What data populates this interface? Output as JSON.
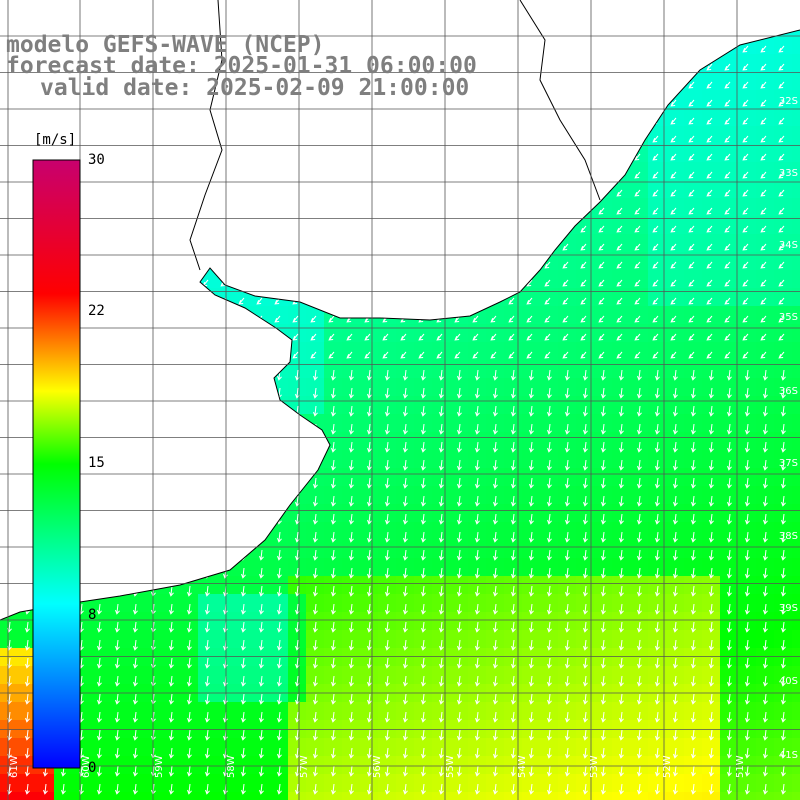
{
  "title": {
    "line1": "modelo GEFS-WAVE (NCEP)",
    "line2": "forecast date: 2025-01-31 06:00:00",
    "line3": "valid date: 2025-02-09 21:00:00"
  },
  "colorbar": {
    "unit": "[m/s]",
    "ticks": [
      "30",
      "22",
      "15",
      "8",
      "0"
    ],
    "min": 0,
    "max": 30,
    "colors": [
      "#0000ff",
      "#00ffff",
      "#00ff00",
      "#ffff00",
      "#ff0000",
      "#c8006e"
    ]
  },
  "lat_labels": [
    "32S",
    "33S",
    "34S",
    "35S",
    "36S",
    "37S",
    "38S",
    "39S",
    "40S",
    "41S"
  ],
  "lon_labels": [
    "61W",
    "60W",
    "59W",
    "58W",
    "57W",
    "56W",
    "55W",
    "54W",
    "53W",
    "52W",
    "51W"
  ],
  "map": {
    "field": "wind speed",
    "region": "Rio de la Plata / Uruguay / South Atlantic",
    "land_color": "#ffffff",
    "coastline_color": "#000000",
    "grid_color": "#555555",
    "arrow_color": "#ffffff",
    "wind_direction": "southward (from north)"
  }
}
